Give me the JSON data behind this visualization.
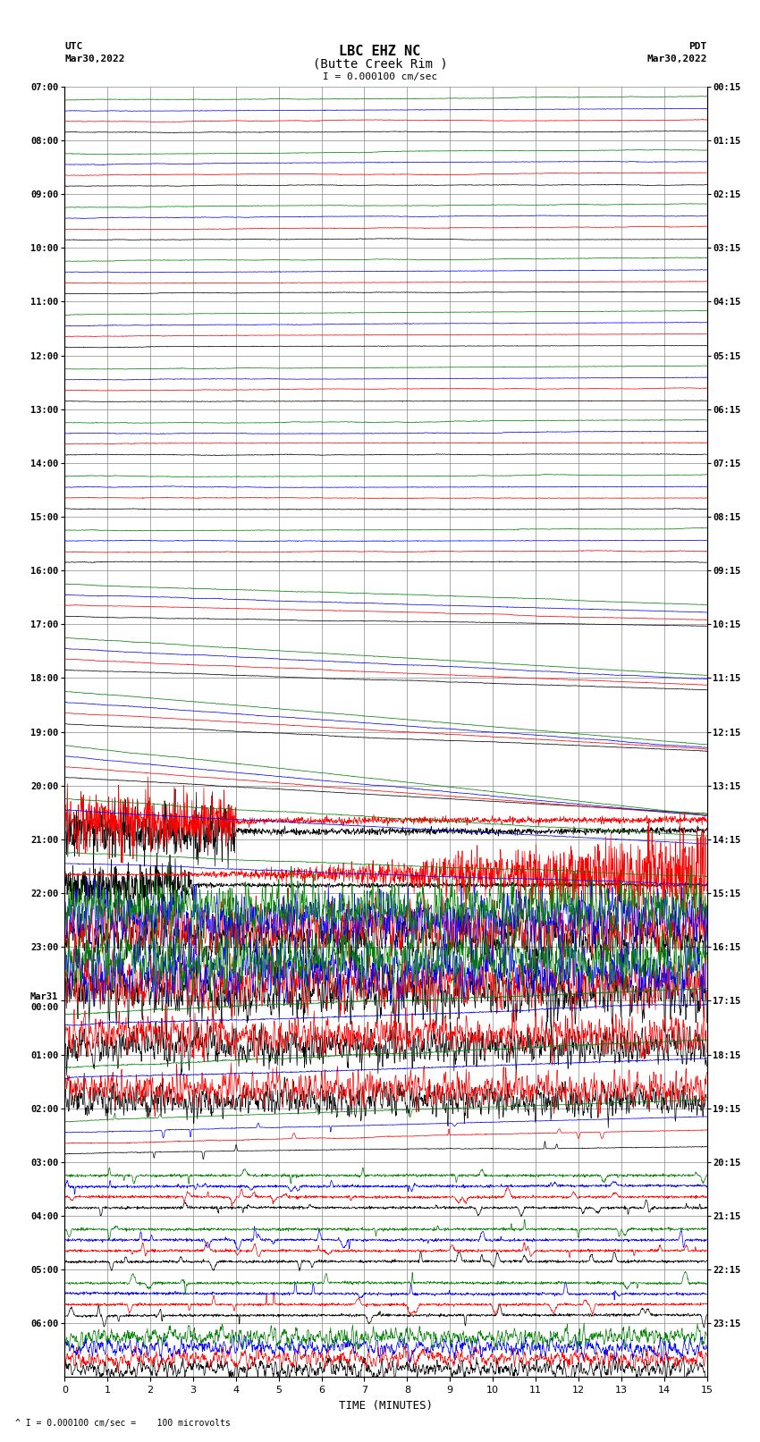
{
  "title_line1": "LBC EHZ NC",
  "title_line2": "(Butte Creek Rim )",
  "scale_label": "I = 0.000100 cm/sec",
  "left_label_top": "UTC",
  "left_label_bottom": "Mar30,2022",
  "right_label_top": "PDT",
  "right_label_bottom": "Mar30,2022",
  "bottom_label": "TIME (MINUTES)",
  "bottom_note": "^ I = 0.000100 cm/sec =    100 microvolts",
  "xlabel_ticks": [
    0,
    1,
    2,
    3,
    4,
    5,
    6,
    7,
    8,
    9,
    10,
    11,
    12,
    13,
    14,
    15
  ],
  "utc_times": [
    "07:00",
    "08:00",
    "09:00",
    "10:00",
    "11:00",
    "12:00",
    "13:00",
    "14:00",
    "15:00",
    "16:00",
    "17:00",
    "18:00",
    "19:00",
    "20:00",
    "21:00",
    "22:00",
    "23:00",
    "Mar31\n00:00",
    "01:00",
    "02:00",
    "03:00",
    "04:00",
    "05:00",
    "06:00"
  ],
  "pdt_times": [
    "00:15",
    "01:15",
    "02:15",
    "03:15",
    "04:15",
    "05:15",
    "06:15",
    "07:15",
    "08:15",
    "09:15",
    "10:15",
    "11:15",
    "12:15",
    "13:15",
    "14:15",
    "15:15",
    "16:15",
    "17:15",
    "18:15",
    "19:15",
    "20:15",
    "21:15",
    "22:15",
    "23:15"
  ],
  "num_rows": 24,
  "colors": [
    "black",
    "red",
    "blue",
    "green"
  ],
  "bg_color": "white",
  "grid_color": "#888888"
}
